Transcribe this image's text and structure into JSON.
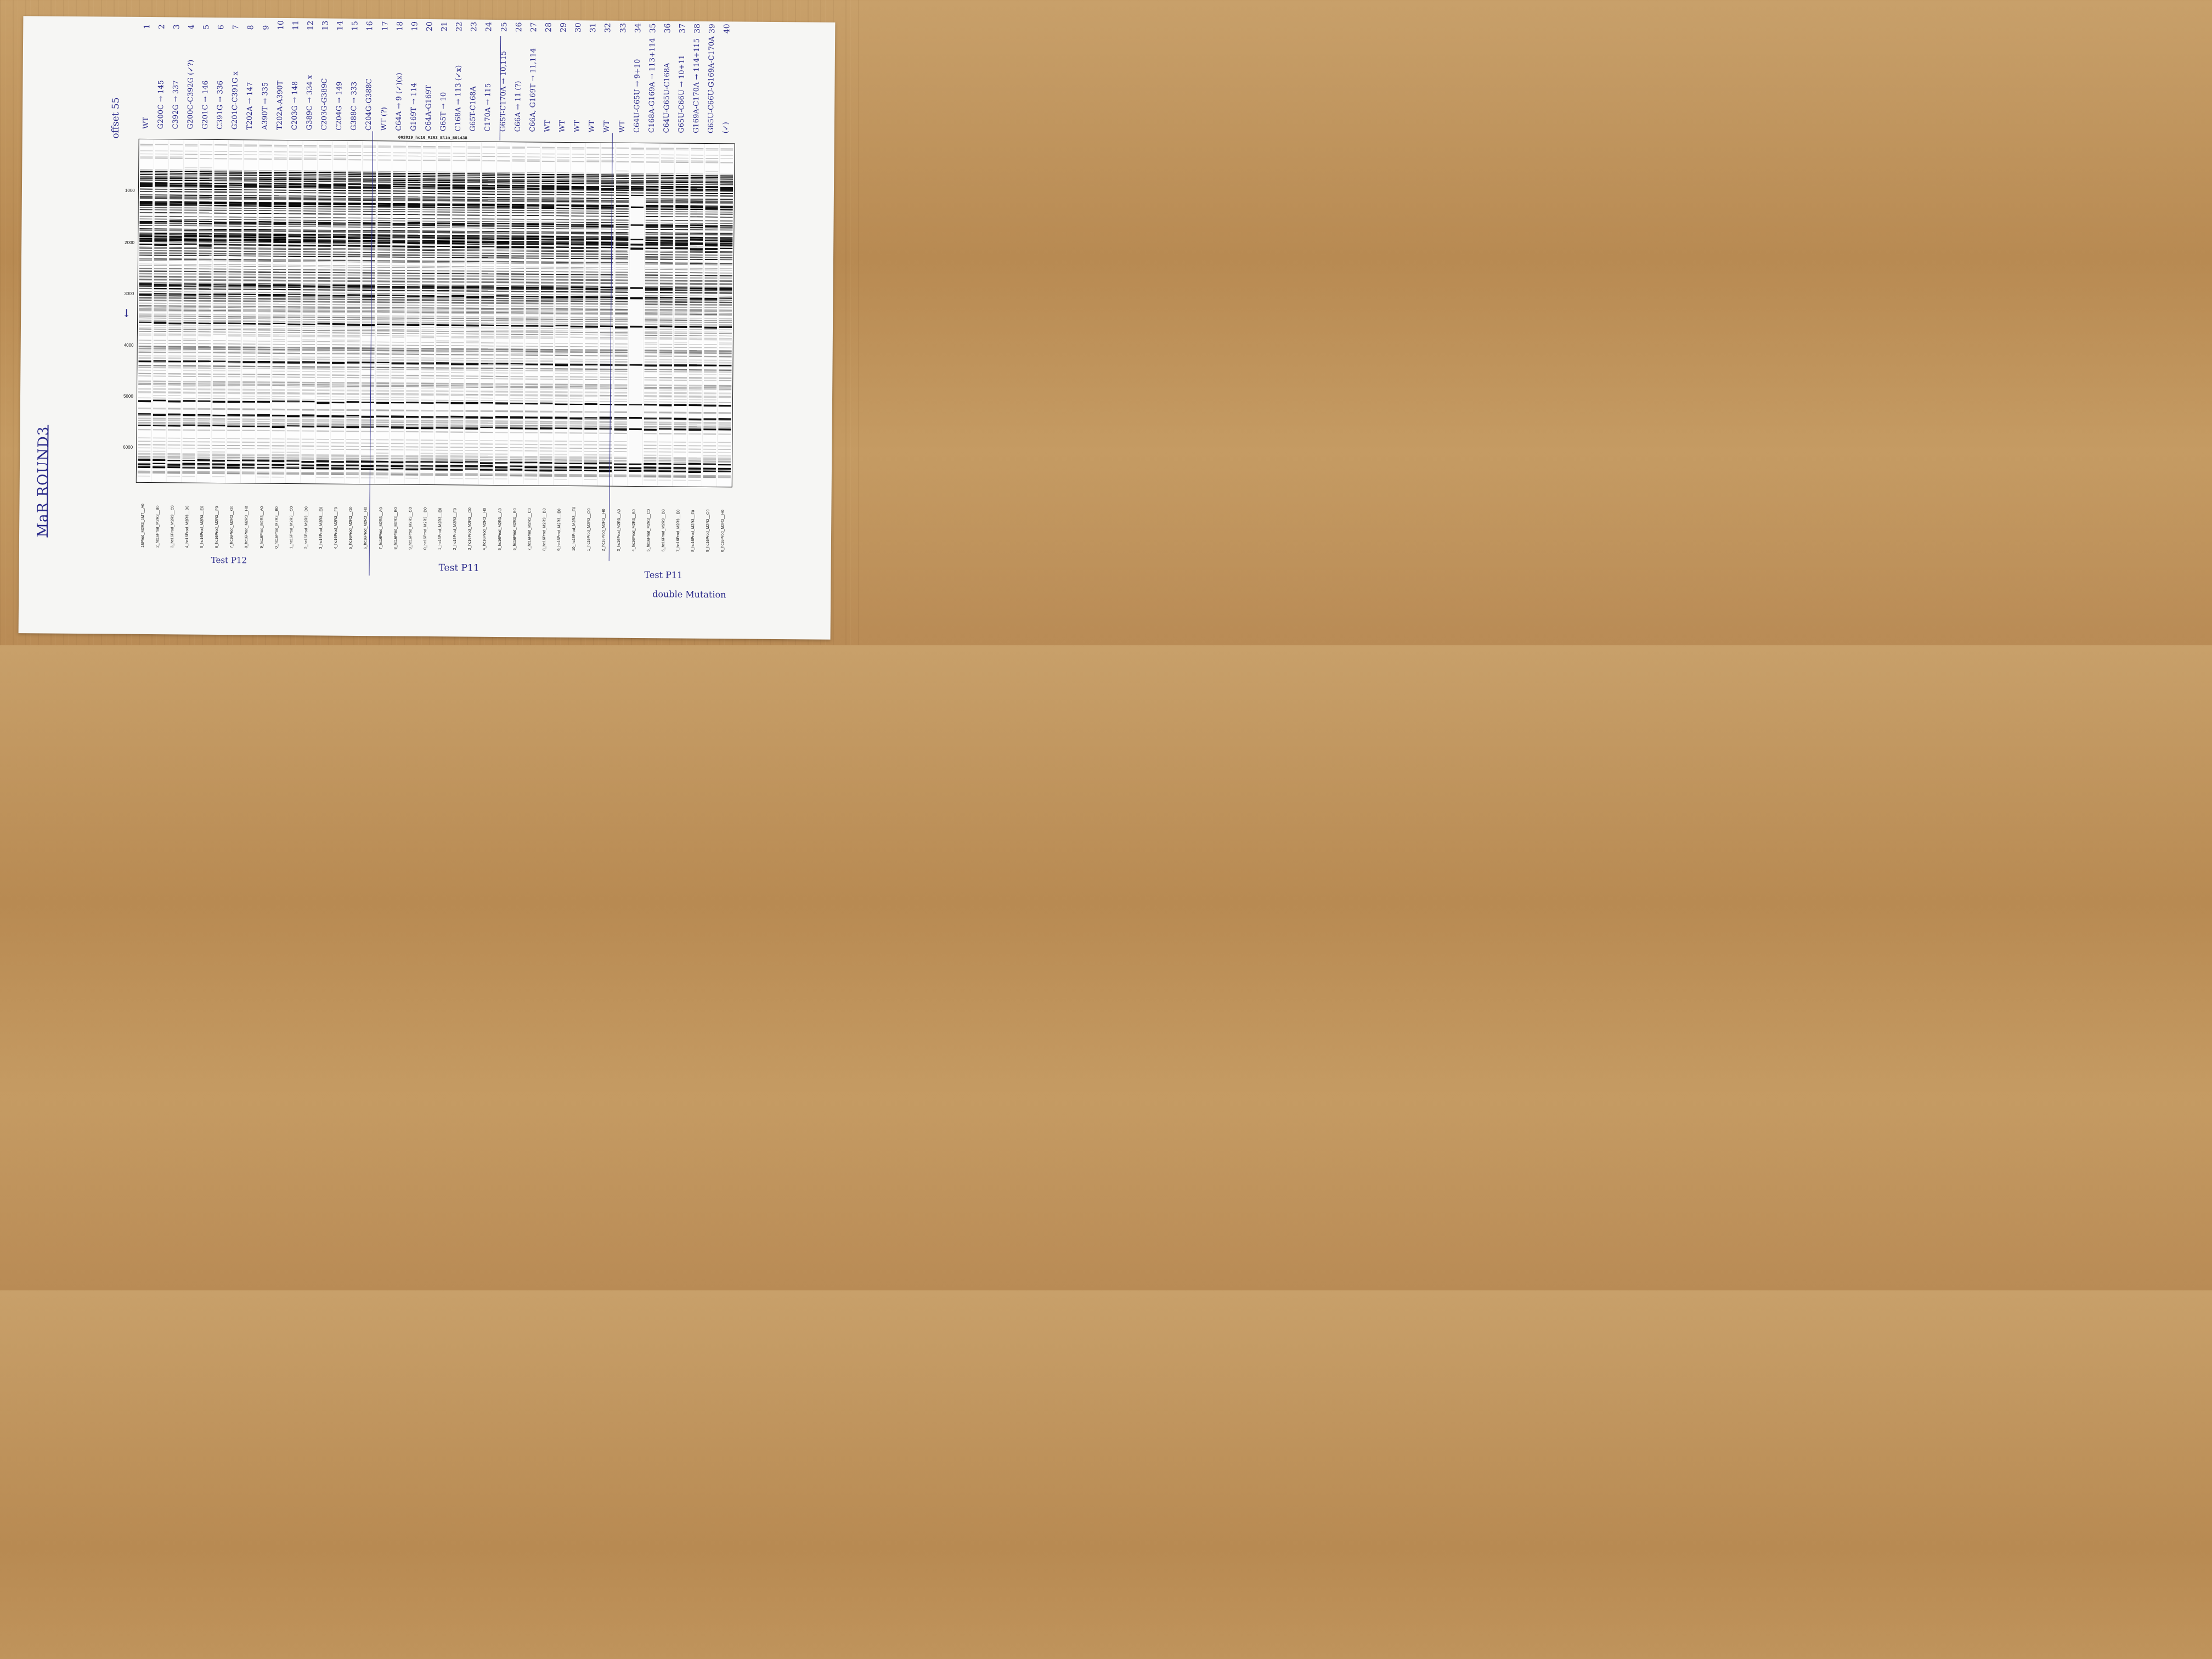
{
  "title": "MaR ROUND3",
  "offset_note": "offset 55",
  "gel_title": "062019_hc16_M2R3_Elim_591438",
  "y_ticks": [
    "1000",
    "2000",
    "3000",
    "4000",
    "5000",
    "6000"
  ],
  "arrow_mark": "↓",
  "groups": [
    {
      "label": "Test P12"
    },
    {
      "label": "Test P11"
    },
    {
      "label": "Test P11",
      "sub": "double Mutation"
    }
  ],
  "lanes": [
    {
      "label": "1&Prod_M2R3_1M7__A0",
      "annot": "WT",
      "num": "1"
    },
    {
      "label": "2_hc16Prod_M2R3__B0",
      "annot": "G200C → 145",
      "num": "2"
    },
    {
      "label": "3_hc16Prod_M2R3__C0",
      "annot": "C392G → 337",
      "num": "3"
    },
    {
      "label": "4_hc16Prod_M2R3__D0",
      "annot": "G200C-C392G (✓?)",
      "num": "4"
    },
    {
      "label": "5_hc16Prod_M2R3__E0",
      "annot": "G201C → 146",
      "num": "5"
    },
    {
      "label": "6_hc16Prod_M2R3__F0",
      "annot": "C391G → 336",
      "num": "6"
    },
    {
      "label": "7_hc16Prod_M2R3__G0",
      "annot": "G201C-C391G x",
      "num": "7"
    },
    {
      "label": "8_hc16Prod_M2R3__H0",
      "annot": "T202A → 147",
      "num": "8"
    },
    {
      "label": "9_hc16Prod_M2R3__A0",
      "annot": "A390T → 335",
      "num": "9"
    },
    {
      "label": "0_hc16Prod_M2R3__B0",
      "annot": "T202A-A390T",
      "num": "10"
    },
    {
      "label": "1_hc16Prod_M2R3__C0",
      "annot": "C203G → 148",
      "num": "11"
    },
    {
      "label": "2_hc16Prod_M2R3__D0",
      "annot": "G389C → 334 x",
      "num": "12"
    },
    {
      "label": "3_hc16Prod_M2R3__E0",
      "annot": "C203G-G389C",
      "num": "13"
    },
    {
      "label": "4_hc16Prod_M2R3__F0",
      "annot": "C204G → 149",
      "num": "14"
    },
    {
      "label": "5_hc16Prod_M2R3__G0",
      "annot": "G388C → 333",
      "num": "15"
    },
    {
      "label": "6_hc16Prod_M2R3__H0",
      "annot": "C204G-G388C",
      "num": "16"
    },
    {
      "label": "7_hc16Prod_M2R3__A0",
      "annot": "WT (?)",
      "num": "17"
    },
    {
      "label": "8_hc16Prod_M2R3__B0",
      "annot": "C64A → 9 (✓)(x)",
      "num": "18"
    },
    {
      "label": "9_hc16Prod_M2R3__C0",
      "annot": "G169T → 114",
      "num": "19"
    },
    {
      "label": "0_hc16Prod_M2R3__D0",
      "annot": "C64A-G169T",
      "num": "20"
    },
    {
      "label": "1_hc16Prod_M2R3__E0",
      "annot": "G65T → 10",
      "num": "21"
    },
    {
      "label": "2_hc16Prod_M2R3__F0",
      "annot": "C168A → 113 (✓x)",
      "num": "22"
    },
    {
      "label": "3_hc16Prod_M2R3__G0",
      "annot": "G65T-C168A",
      "num": "23"
    },
    {
      "label": "4_hc16Prod_M2R3__H0",
      "annot": "C170A → 115",
      "num": "24"
    },
    {
      "label": "5_hc16Prod_M2R3__A0",
      "annot": "G65T-C170A → 10,115",
      "num": "25"
    },
    {
      "label": "6_hc16Prod_M2R3__B0",
      "annot": "C66A → 11 (?)",
      "num": "26"
    },
    {
      "label": "7_hc16Prod_M2R3__C0",
      "annot": "C66A, G169T → 11,114",
      "num": "27"
    },
    {
      "label": "8_hc16Prod_M2R3__D0",
      "annot": "WT",
      "num": "28"
    },
    {
      "label": "9_hc16Prod_M2R3__E0",
      "annot": "WT",
      "num": "29"
    },
    {
      "label": "10_hc16Prod_M2R3__F0",
      "annot": "WT",
      "num": "30"
    },
    {
      "label": "1_hc16Prod_M2R3__G0",
      "annot": "WT",
      "num": "31"
    },
    {
      "label": "2_hc16Prod_M2R3__H0",
      "annot": "WT",
      "num": "32"
    },
    {
      "label": "3_hc16Prod_M2R3__A0",
      "annot": "WT",
      "num": "33"
    },
    {
      "label": "4_hc16Prod_M2R3__B0",
      "annot": "C64U-G65U → 9+10",
      "num": "34"
    },
    {
      "label": "5_hc16Prod_M2R3__C0",
      "annot": "C168A-G169A → 113+114",
      "num": "35"
    },
    {
      "label": "6_hc16Prod_M2R3__D0",
      "annot": "C64U-G65U-C168A",
      "num": "36"
    },
    {
      "label": "7_hc16Prod_M2R3__E0",
      "annot": "G65U-C66U → 10+11",
      "num": "37"
    },
    {
      "label": "8_hc16Prod_M2R3__F0",
      "annot": "G169A-C170A → 114+115",
      "num": "38"
    },
    {
      "label": "9_hc16Prod_M2R3__G0",
      "annot": "G65U-C66U-G169A-C170A",
      "num": "39"
    },
    {
      "label": "0_hc16Prod_M2R3__H0",
      "annot": "(✓)",
      "num": "40"
    }
  ]
}
